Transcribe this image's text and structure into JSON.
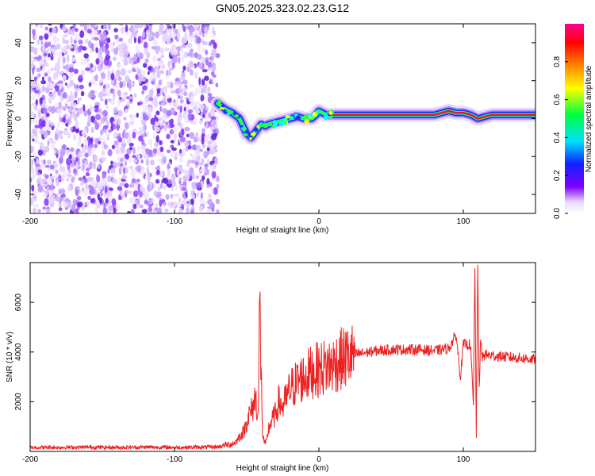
{
  "chart_data": [
    {
      "type": "heatmap",
      "title": "GN05.2025.323.02.23.G12",
      "xlabel": "Height of straight line (km)",
      "ylabel": "Frequency (Hz)",
      "xlim": [
        -200,
        150
      ],
      "ylim": [
        -50,
        50
      ],
      "xticks": [
        -200,
        -100,
        0,
        100
      ],
      "yticks": [
        -40,
        -20,
        0,
        20,
        40
      ],
      "colorbar": {
        "label": "Normalized spectral amplitude",
        "range": [
          0,
          1
        ],
        "ticks": [
          "0.0",
          "0.2",
          "0.4",
          "0.6",
          "0.8"
        ],
        "colormap": [
          "#ffffff",
          "#8000ff",
          "#0000ff",
          "#00ffff",
          "#00ff00",
          "#ffff00",
          "#ff8000",
          "#ff0000",
          "#ff00ff"
        ]
      },
      "noise_region": {
        "x_from": -200,
        "x_to": -70,
        "freq_from": -50,
        "freq_to": 50
      },
      "ridge": {
        "x": [
          -70,
          -65,
          -60,
          -55,
          -52,
          -50,
          -47,
          -45,
          -42,
          -40,
          -37,
          -35,
          -30,
          -25,
          -20,
          -15,
          -10,
          -5,
          -2,
          0,
          5,
          10,
          20,
          40,
          60,
          80,
          90,
          95,
          100,
          105,
          110,
          120,
          150
        ],
        "freq": [
          8,
          5,
          3,
          0,
          -5,
          -8,
          -10,
          -8,
          -5,
          -3,
          -4,
          -3,
          -2,
          -1,
          0,
          1,
          0,
          0,
          2,
          4,
          2,
          2,
          2,
          2,
          2,
          2,
          4,
          3,
          3,
          2,
          0,
          2,
          2
        ]
      }
    },
    {
      "type": "line",
      "xlabel": "Height of straight line (km)",
      "ylabel": "SNR (10 * v/v)",
      "xlim": [
        -200,
        150
      ],
      "ylim": [
        0,
        7600
      ],
      "xticks": [
        -200,
        -100,
        0,
        100
      ],
      "yticks": [
        2000,
        4000,
        6000
      ],
      "series": [
        {
          "name": "SNR",
          "color": "#ee2020",
          "x": [
            -200,
            -180,
            -160,
            -140,
            -120,
            -100,
            -80,
            -70,
            -65,
            -60,
            -57,
            -55,
            -52,
            -50,
            -48,
            -46,
            -44,
            -42,
            -41,
            -40,
            -39,
            -38,
            -37,
            -36,
            -35,
            -33,
            -30,
            -28,
            -25,
            -22,
            -20,
            -15,
            -10,
            -5,
            0,
            5,
            10,
            15,
            20,
            25,
            30,
            40,
            50,
            60,
            70,
            80,
            90,
            95,
            98,
            100,
            105,
            107,
            108,
            109,
            110,
            111,
            112,
            113,
            115,
            120,
            130,
            140,
            150
          ],
          "y": [
            160,
            160,
            170,
            160,
            170,
            160,
            170,
            180,
            250,
            300,
            400,
            600,
            800,
            1200,
            1500,
            1700,
            2200,
            1500,
            6100,
            3000,
            700,
            400,
            300,
            450,
            900,
            1200,
            1500,
            2000,
            1800,
            2200,
            2500,
            2800,
            3000,
            3200,
            3300,
            3400,
            3500,
            3700,
            3800,
            3900,
            3950,
            4050,
            4100,
            4100,
            4100,
            4050,
            4150,
            4700,
            3000,
            4300,
            4300,
            1800,
            7500,
            700,
            7300,
            2500,
            4500,
            3800,
            3900,
            3850,
            3800,
            3750,
            3700
          ]
        }
      ]
    }
  ]
}
